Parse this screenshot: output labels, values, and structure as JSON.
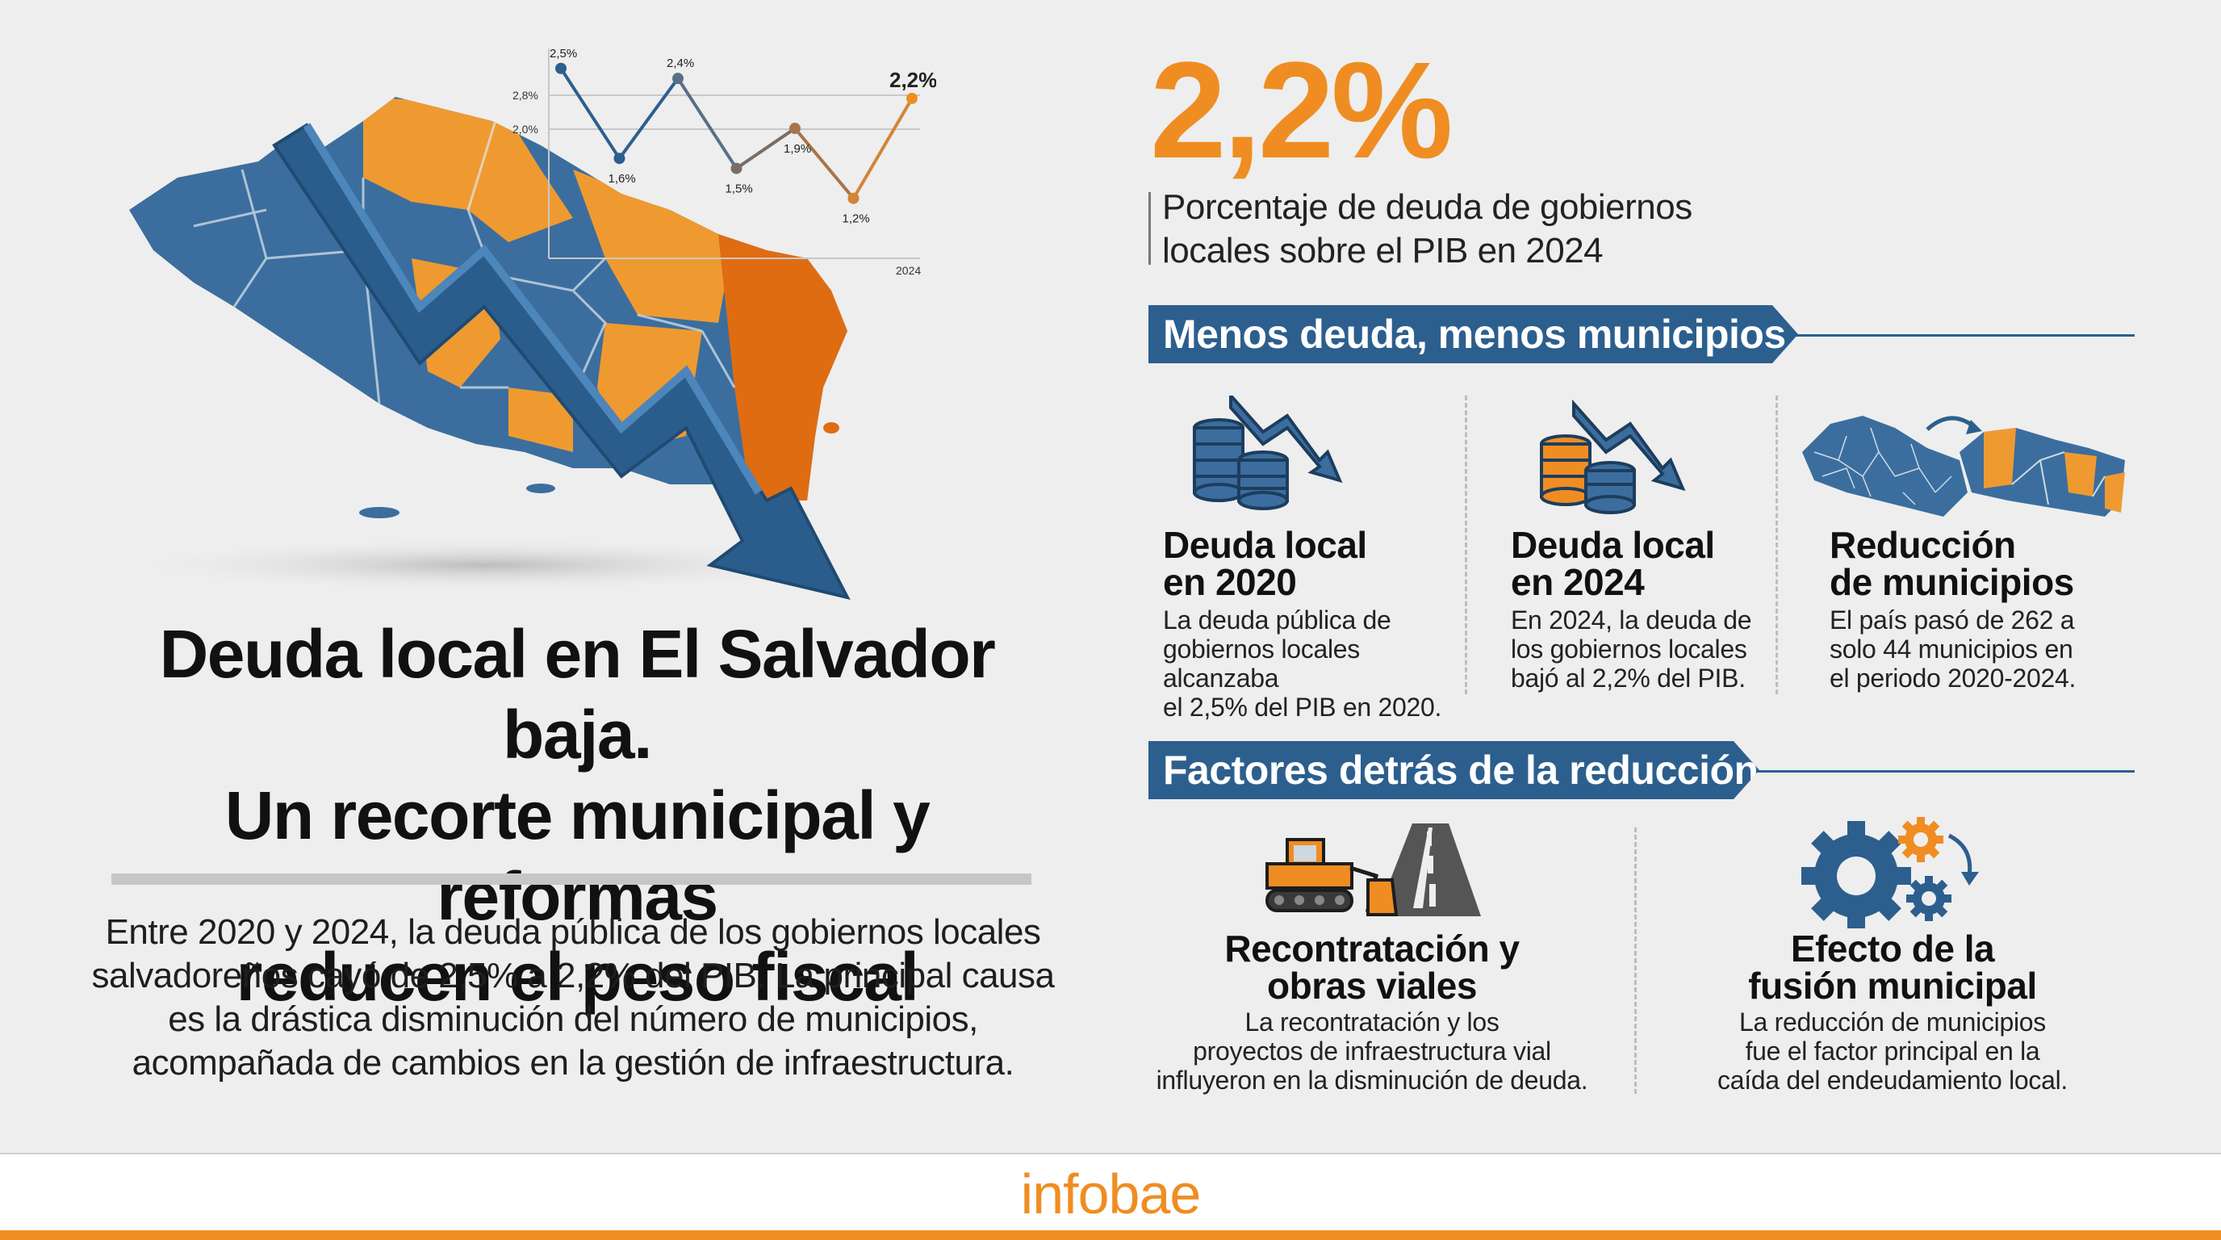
{
  "headline": {
    "line1": "Deuda local en El Salvador baja.",
    "line2": "Un recorte municipal y reformas",
    "line3": "reducen el peso fiscal"
  },
  "intro": {
    "line1": "Entre 2020 y 2024, la deuda pública de los gobiernos locales",
    "line2": "salvadoreños cayó de 2,5% a 2,2% del PIB. La principal causa",
    "line3": "es la drástica disminución del número de municipios,",
    "line4": "acompañada de cambios en la gestión de infraestructura."
  },
  "mini_chart": {
    "y_ticks": [
      "2,8%",
      "2,0%"
    ],
    "point_labels": [
      "2,5%",
      "1,6%",
      "2,4%",
      "1,5%",
      "1,9%",
      "1,2%",
      "2,2%"
    ],
    "values": [
      2.5,
      1.6,
      2.4,
      1.5,
      1.9,
      1.2,
      2.2
    ],
    "x_label_last": "2024"
  },
  "highlight": {
    "value": "2,2%",
    "desc_line1": "Porcentaje de deuda de gobiernos",
    "desc_line2": "locales sobre el PIB en 2024"
  },
  "section1": {
    "title": "Menos deuda, menos municipios",
    "cards": [
      {
        "title1": "Deuda local",
        "title2": "en 2020",
        "text1": "La deuda pública de",
        "text2": "gobiernos locales alcanzaba",
        "text3": "el 2,5% del PIB en 2020."
      },
      {
        "title1": "Deuda local",
        "title2": "en 2024",
        "text1": "En 2024, la deuda de",
        "text2": "los gobiernos locales",
        "text3": "bajó al 2,2% del PIB."
      },
      {
        "title1": "Reducción",
        "title2": "de municipios",
        "text1": "El país pasó de 262 a",
        "text2": "solo 44 municipios en",
        "text3": "el periodo 2020-2024."
      }
    ]
  },
  "section2": {
    "title": "Factores detrás de la reducción",
    "cards": [
      {
        "title1": "Recontratación y",
        "title2": "obras viales",
        "text1": "La recontratación y los",
        "text2": "proyectos de infraestructura vial",
        "text3": "influyeron en la disminución de deuda."
      },
      {
        "title1": "Efecto de la",
        "title2": "fusión municipal",
        "text1": "La reducción de municipios",
        "text2": "fue el factor principal en la",
        "text3": "caída del endeudamiento local."
      }
    ]
  },
  "footer": {
    "brand": "infobae"
  },
  "colors": {
    "orange": "#ef8d22",
    "blue": "#2c5f8e",
    "dark_orange": "#e06c12"
  }
}
